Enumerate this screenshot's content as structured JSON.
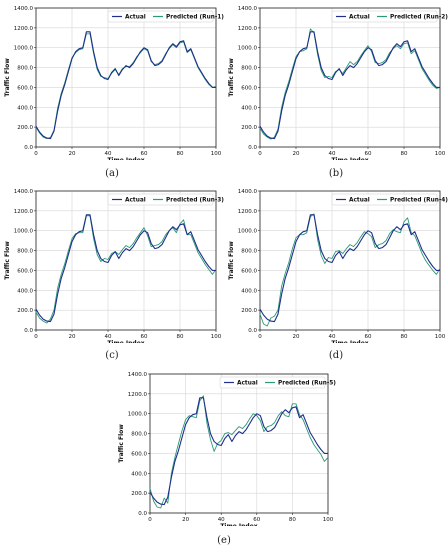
{
  "colors": {
    "actual": "#1f2f8a",
    "predicted": "#2a9a78",
    "grid": "#d6d6d6",
    "frame": "#222222"
  },
  "chart_data": [
    {
      "type": "line",
      "caption": "(a)",
      "xlabel": "Time Index",
      "ylabel": "Traffic Flow",
      "xlim": [
        0,
        100
      ],
      "ylim": [
        0,
        1400
      ],
      "xticks": [
        "0",
        "20",
        "40",
        "60",
        "80",
        "100"
      ],
      "yticks": [
        "0.0",
        "200.0",
        "400.0",
        "600.0",
        "800.0",
        "1000.0",
        "1200.0",
        "1400.0"
      ],
      "grid": true,
      "legend": "top-right",
      "x": [
        0,
        2,
        4,
        6,
        8,
        10,
        12,
        14,
        16,
        18,
        20,
        22,
        24,
        26,
        28,
        30,
        32,
        34,
        36,
        38,
        40,
        42,
        44,
        46,
        48,
        50,
        52,
        54,
        56,
        58,
        60,
        62,
        64,
        66,
        68,
        70,
        72,
        74,
        76,
        78,
        80,
        82,
        84,
        86,
        88,
        90,
        92,
        94,
        96,
        98,
        100
      ],
      "series": [
        {
          "name": "Actual",
          "values": [
            210,
            150,
            110,
            90,
            85,
            160,
            360,
            520,
            630,
            760,
            890,
            960,
            990,
            1000,
            1160,
            1160,
            960,
            800,
            720,
            690,
            680,
            750,
            790,
            720,
            780,
            820,
            800,
            840,
            900,
            960,
            1000,
            980,
            870,
            820,
            830,
            860,
            930,
            1000,
            1040,
            1010,
            1060,
            1070,
            960,
            990,
            900,
            810,
            750,
            690,
            640,
            600,
            600
          ]
        },
        {
          "name": "Predicted (Run-1)",
          "values": [
            200,
            140,
            100,
            85,
            95,
            170,
            390,
            540,
            650,
            780,
            900,
            950,
            980,
            990,
            1140,
            1140,
            940,
            780,
            710,
            700,
            690,
            740,
            780,
            730,
            790,
            810,
            810,
            850,
            910,
            950,
            990,
            970,
            860,
            830,
            840,
            870,
            940,
            990,
            1030,
            1000,
            1050,
            1060,
            950,
            980,
            890,
            800,
            740,
            680,
            630,
            600,
            610
          ]
        }
      ]
    },
    {
      "type": "line",
      "caption": "(b)",
      "xlabel": "Time Index",
      "ylabel": "Traffic Flow",
      "xlim": [
        0,
        100
      ],
      "ylim": [
        0,
        1400
      ],
      "xticks": [
        "0",
        "20",
        "40",
        "60",
        "80",
        "100"
      ],
      "yticks": [
        "0.0",
        "200.0",
        "400.0",
        "600.0",
        "800.0",
        "1000.0",
        "1200.0",
        "1400.0"
      ],
      "grid": true,
      "legend": "top-right",
      "x": [
        0,
        2,
        4,
        6,
        8,
        10,
        12,
        14,
        16,
        18,
        20,
        22,
        24,
        26,
        28,
        30,
        32,
        34,
        36,
        38,
        40,
        42,
        44,
        46,
        48,
        50,
        52,
        54,
        56,
        58,
        60,
        62,
        64,
        66,
        68,
        70,
        72,
        74,
        76,
        78,
        80,
        82,
        84,
        86,
        88,
        90,
        92,
        94,
        96,
        98,
        100
      ],
      "series": [
        {
          "name": "Actual",
          "values": [
            210,
            150,
            110,
            90,
            85,
            160,
            360,
            520,
            630,
            760,
            890,
            960,
            990,
            1000,
            1160,
            1160,
            960,
            800,
            720,
            690,
            680,
            750,
            790,
            720,
            780,
            820,
            800,
            840,
            900,
            960,
            1000,
            980,
            870,
            820,
            830,
            860,
            930,
            1000,
            1040,
            1010,
            1060,
            1070,
            960,
            990,
            900,
            810,
            750,
            690,
            640,
            600,
            600
          ]
        },
        {
          "name": "Predicted (Run-2)",
          "values": [
            190,
            130,
            100,
            80,
            100,
            180,
            400,
            550,
            660,
            790,
            910,
            960,
            970,
            990,
            1190,
            1150,
            930,
            770,
            700,
            710,
            700,
            760,
            780,
            740,
            800,
            860,
            830,
            860,
            920,
            970,
            1020,
            960,
            850,
            840,
            850,
            880,
            950,
            990,
            1020,
            990,
            1040,
            1050,
            940,
            970,
            880,
            790,
            730,
            670,
            620,
            590,
            600
          ]
        }
      ]
    },
    {
      "type": "line",
      "caption": "(c)",
      "xlabel": "Time Index",
      "ylabel": "Traffic Flow",
      "xlim": [
        0,
        100
      ],
      "ylim": [
        0,
        1400
      ],
      "xticks": [
        "0",
        "20",
        "40",
        "60",
        "80",
        "100"
      ],
      "yticks": [
        "0.0",
        "200.0",
        "400.0",
        "600.0",
        "800.0",
        "1000.0",
        "1200.0",
        "1400.0"
      ],
      "grid": true,
      "legend": "top-right",
      "x": [
        0,
        2,
        4,
        6,
        8,
        10,
        12,
        14,
        16,
        18,
        20,
        22,
        24,
        26,
        28,
        30,
        32,
        34,
        36,
        38,
        40,
        42,
        44,
        46,
        48,
        50,
        52,
        54,
        56,
        58,
        60,
        62,
        64,
        66,
        68,
        70,
        72,
        74,
        76,
        78,
        80,
        82,
        84,
        86,
        88,
        90,
        92,
        94,
        96,
        98,
        100
      ],
      "series": [
        {
          "name": "Actual",
          "values": [
            210,
            150,
            110,
            90,
            85,
            160,
            360,
            520,
            630,
            760,
            890,
            960,
            990,
            1000,
            1160,
            1160,
            960,
            800,
            720,
            690,
            680,
            750,
            790,
            720,
            780,
            820,
            800,
            840,
            900,
            960,
            1000,
            980,
            870,
            820,
            830,
            860,
            930,
            1000,
            1040,
            1010,
            1060,
            1070,
            960,
            990,
            900,
            810,
            750,
            690,
            640,
            600,
            600
          ]
        },
        {
          "name": "Predicted (Run-3)",
          "values": [
            180,
            120,
            90,
            70,
            110,
            200,
            420,
            560,
            670,
            800,
            920,
            970,
            980,
            980,
            1150,
            1150,
            920,
            760,
            690,
            720,
            710,
            770,
            790,
            760,
            810,
            850,
            830,
            870,
            930,
            980,
            1030,
            950,
            840,
            850,
            860,
            890,
            960,
            1000,
            1030,
            980,
            1070,
            1110,
            960,
            960,
            870,
            780,
            720,
            660,
            610,
            560,
            610
          ]
        }
      ]
    },
    {
      "type": "line",
      "caption": "(d)",
      "xlabel": "Time Index",
      "ylabel": "Traffic Flow",
      "xlim": [
        0,
        100
      ],
      "ylim": [
        0,
        1400
      ],
      "xticks": [
        "0",
        "20",
        "40",
        "60",
        "80",
        "100"
      ],
      "yticks": [
        "0.0",
        "200.0",
        "400.0",
        "600.0",
        "800.0",
        "1000.0",
        "1200.0",
        "1400.0"
      ],
      "grid": true,
      "legend": "top-right",
      "x": [
        0,
        2,
        4,
        6,
        8,
        10,
        12,
        14,
        16,
        18,
        20,
        22,
        24,
        26,
        28,
        30,
        32,
        34,
        36,
        38,
        40,
        42,
        44,
        46,
        48,
        50,
        52,
        54,
        56,
        58,
        60,
        62,
        64,
        66,
        68,
        70,
        72,
        74,
        76,
        78,
        80,
        82,
        84,
        86,
        88,
        90,
        92,
        94,
        96,
        98,
        100
      ],
      "series": [
        {
          "name": "Actual",
          "values": [
            210,
            150,
            110,
            90,
            85,
            160,
            360,
            520,
            630,
            760,
            890,
            960,
            990,
            1000,
            1160,
            1160,
            960,
            800,
            720,
            690,
            680,
            750,
            790,
            720,
            780,
            820,
            800,
            840,
            900,
            960,
            1000,
            980,
            870,
            820,
            830,
            860,
            930,
            1000,
            1040,
            1010,
            1060,
            1070,
            960,
            990,
            900,
            810,
            750,
            690,
            640,
            600,
            600
          ]
        },
        {
          "name": "Predicted (Run-4)",
          "values": [
            160,
            60,
            40,
            120,
            140,
            200,
            440,
            570,
            680,
            820,
            930,
            960,
            960,
            980,
            1140,
            1170,
            910,
            750,
            670,
            730,
            720,
            790,
            800,
            770,
            820,
            860,
            840,
            880,
            940,
            990,
            970,
            940,
            830,
            860,
            870,
            900,
            970,
            1010,
            990,
            980,
            1090,
            1130,
            980,
            950,
            860,
            770,
            700,
            650,
            600,
            560,
            620
          ]
        }
      ]
    },
    {
      "type": "line",
      "caption": "(e)",
      "xlabel": "Time Index",
      "ylabel": "Traffic Flow",
      "xlim": [
        0,
        100
      ],
      "ylim": [
        0,
        1400
      ],
      "xticks": [
        "0",
        "20",
        "40",
        "60",
        "80",
        "100"
      ],
      "yticks": [
        "0.0",
        "200.0",
        "400.0",
        "600.0",
        "800.0",
        "1000.0",
        "1200.0",
        "1400.0"
      ],
      "grid": true,
      "legend": "top-right",
      "x": [
        0,
        2,
        4,
        6,
        8,
        10,
        12,
        14,
        16,
        18,
        20,
        22,
        24,
        26,
        28,
        30,
        32,
        34,
        36,
        38,
        40,
        42,
        44,
        46,
        48,
        50,
        52,
        54,
        56,
        58,
        60,
        62,
        64,
        66,
        68,
        70,
        72,
        74,
        76,
        78,
        80,
        82,
        84,
        86,
        88,
        90,
        92,
        94,
        96,
        98,
        100
      ],
      "series": [
        {
          "name": "Actual",
          "values": [
            210,
            150,
            110,
            90,
            85,
            160,
            360,
            520,
            630,
            760,
            890,
            960,
            990,
            1000,
            1160,
            1160,
            960,
            800,
            720,
            690,
            680,
            750,
            790,
            720,
            780,
            820,
            800,
            840,
            900,
            960,
            1000,
            980,
            870,
            820,
            830,
            860,
            930,
            1000,
            1040,
            1010,
            1060,
            1070,
            960,
            990,
            900,
            810,
            750,
            690,
            640,
            600,
            600
          ]
        },
        {
          "name": "Predicted (Run-5)",
          "values": [
            250,
            120,
            60,
            50,
            150,
            100,
            400,
            560,
            700,
            830,
            940,
            980,
            970,
            960,
            1130,
            1180,
            900,
            740,
            620,
            700,
            730,
            800,
            810,
            790,
            830,
            870,
            850,
            890,
            950,
            1000,
            980,
            930,
            820,
            870,
            880,
            910,
            980,
            1020,
            980,
            970,
            1100,
            1100,
            990,
            940,
            850,
            760,
            690,
            640,
            590,
            520,
            560
          ]
        }
      ]
    }
  ]
}
